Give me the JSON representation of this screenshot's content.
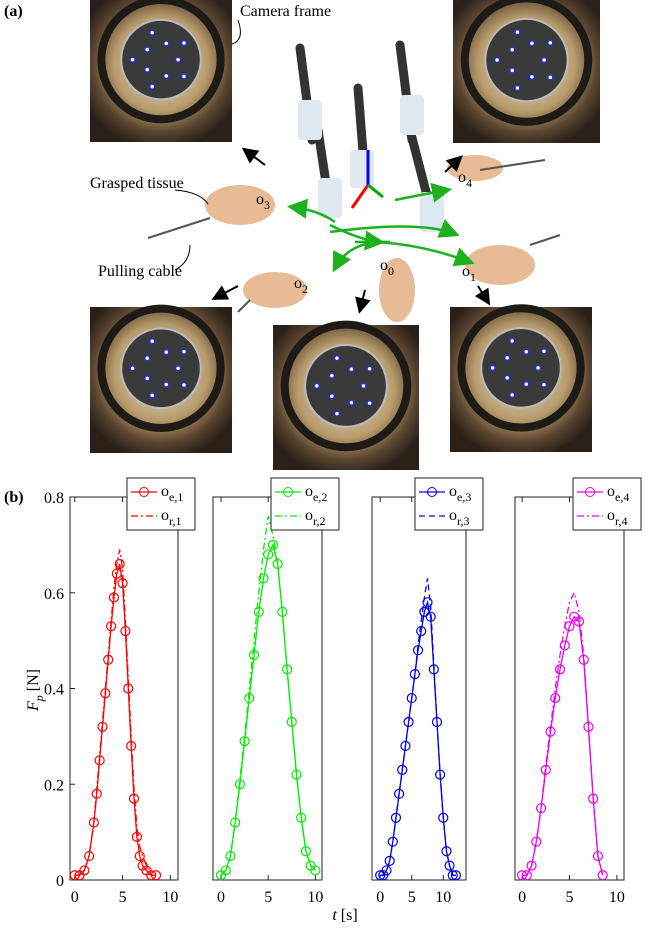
{
  "panel_a": {
    "label": "(a)",
    "annotations": [
      "Camera frame",
      "Grasped tissue",
      "Pulling cable"
    ],
    "points": [
      {
        "base": "o",
        "sub": "0"
      },
      {
        "base": "o",
        "sub": "1"
      },
      {
        "base": "o",
        "sub": "2"
      },
      {
        "base": "o",
        "sub": "3"
      },
      {
        "base": "o",
        "sub": "4"
      }
    ]
  },
  "panel_b": {
    "label": "(b)",
    "ylabel": {
      "symbol": "F",
      "sub": "p",
      "unit": "[N]"
    },
    "xlabel": {
      "symbol": "t",
      "unit": "[s]"
    }
  },
  "chart_data": [
    {
      "type": "line",
      "xlim": [
        -0.5,
        10.8
      ],
      "xticks": [
        0,
        5,
        10
      ],
      "ylim": [
        0,
        0.8
      ],
      "yticks": [
        0,
        0.2,
        0.4,
        0.6,
        0.8
      ],
      "grid": false,
      "legend": "top-right",
      "x": [
        0,
        0.5,
        1,
        1.5,
        2,
        2.3,
        2.6,
        2.9,
        3.2,
        3.5,
        3.8,
        4.1,
        4.4,
        4.7,
        5,
        5.3,
        5.6,
        5.9,
        6.2,
        6.5,
        6.8,
        7.1,
        7.5,
        8,
        8.5
      ],
      "series": [
        {
          "name": "o",
          "subscript": "e,1",
          "color": "#ff0000",
          "style": "solid-circle",
          "values": [
            0.01,
            0.01,
            0.02,
            0.05,
            0.12,
            0.18,
            0.25,
            0.32,
            0.39,
            0.46,
            0.53,
            0.59,
            0.64,
            0.66,
            0.62,
            0.52,
            0.4,
            0.28,
            0.17,
            0.09,
            0.05,
            0.03,
            0.02,
            0.01,
            0.01
          ]
        },
        {
          "name": "o",
          "subscript": "r,1",
          "color": "#ff0000",
          "style": "dashdot",
          "values": [
            0.01,
            0.01,
            0.02,
            0.05,
            0.12,
            0.19,
            0.26,
            0.33,
            0.4,
            0.47,
            0.54,
            0.61,
            0.66,
            0.69,
            0.65,
            0.54,
            0.42,
            0.3,
            0.19,
            0.11,
            0.07,
            0.05,
            0.03,
            0.01,
            0.01
          ]
        }
      ]
    },
    {
      "type": "line",
      "xlim": [
        -0.85,
        10.7
      ],
      "xticks": [
        0,
        5,
        10
      ],
      "ylim": [
        0,
        0.8
      ],
      "grid": false,
      "legend": "top-right",
      "x": [
        0,
        0.5,
        1,
        1.5,
        2,
        2.5,
        3,
        3.5,
        4,
        4.5,
        5,
        5.5,
        6,
        6.5,
        7,
        7.5,
        8,
        8.5,
        9,
        9.5,
        10
      ],
      "series": [
        {
          "name": "o",
          "subscript": "e,2",
          "color": "#00ee00",
          "style": "solid-circle",
          "values": [
            0.01,
            0.02,
            0.05,
            0.12,
            0.2,
            0.29,
            0.38,
            0.47,
            0.56,
            0.63,
            0.68,
            0.7,
            0.66,
            0.56,
            0.44,
            0.33,
            0.22,
            0.13,
            0.06,
            0.03,
            0.02
          ]
        },
        {
          "name": "o",
          "subscript": "r,2",
          "color": "#00ee00",
          "style": "dashdot",
          "values": [
            0.01,
            0.02,
            0.05,
            0.12,
            0.21,
            0.3,
            0.4,
            0.5,
            0.6,
            0.69,
            0.76,
            0.72,
            0.66,
            0.56,
            0.44,
            0.33,
            0.22,
            0.13,
            0.06,
            0.03,
            0.02
          ]
        }
      ]
    },
    {
      "type": "line",
      "xlim": [
        -1.3,
        13.6
      ],
      "xticks": [
        0,
        5,
        10
      ],
      "ylim": [
        0,
        0.8
      ],
      "grid": false,
      "legend": "top-right",
      "x": [
        0,
        0.5,
        1,
        1.5,
        2,
        2.5,
        3,
        3.5,
        4,
        4.5,
        5,
        5.5,
        6,
        6.5,
        7,
        7.5,
        8,
        8.5,
        9,
        9.5,
        10,
        10.5,
        11,
        11.5,
        12
      ],
      "series": [
        {
          "name": "o",
          "subscript": "e,3",
          "color": "#0000ee",
          "style": "solid-circle",
          "values": [
            0.01,
            0.01,
            0.02,
            0.04,
            0.08,
            0.13,
            0.18,
            0.23,
            0.28,
            0.33,
            0.38,
            0.43,
            0.48,
            0.52,
            0.56,
            0.58,
            0.55,
            0.44,
            0.33,
            0.22,
            0.13,
            0.06,
            0.03,
            0.01,
            0.01
          ]
        },
        {
          "name": "o",
          "subscript": "r,3",
          "color": "#0000ee",
          "style": "dashed",
          "values": [
            0.01,
            0.01,
            0.02,
            0.04,
            0.08,
            0.13,
            0.18,
            0.23,
            0.28,
            0.33,
            0.38,
            0.43,
            0.49,
            0.54,
            0.59,
            0.63,
            0.57,
            0.45,
            0.33,
            0.22,
            0.13,
            0.06,
            0.03,
            0.01,
            0.01
          ]
        }
      ]
    },
    {
      "type": "line",
      "xlim": [
        -0.75,
        10.75
      ],
      "xticks": [
        0,
        5,
        10
      ],
      "ylim": [
        0,
        0.8
      ],
      "grid": false,
      "legend": "top-right",
      "x": [
        0,
        0.5,
        1,
        1.5,
        2,
        2.5,
        3,
        3.5,
        4,
        4.5,
        5,
        5.5,
        6,
        6.5,
        7,
        7.5,
        8,
        8.5
      ],
      "series": [
        {
          "name": "o",
          "subscript": "e,4",
          "color": "#ee00ee",
          "style": "solid-circle",
          "values": [
            0.01,
            0.01,
            0.03,
            0.08,
            0.15,
            0.23,
            0.31,
            0.38,
            0.44,
            0.49,
            0.53,
            0.55,
            0.54,
            0.46,
            0.32,
            0.17,
            0.05,
            0.01
          ]
        },
        {
          "name": "o",
          "subscript": "r,4",
          "color": "#ee00ee",
          "style": "dashdot",
          "values": [
            0.01,
            0.01,
            0.03,
            0.08,
            0.15,
            0.24,
            0.32,
            0.4,
            0.47,
            0.53,
            0.58,
            0.6,
            0.56,
            0.47,
            0.32,
            0.17,
            0.05,
            0.01
          ]
        }
      ]
    }
  ]
}
